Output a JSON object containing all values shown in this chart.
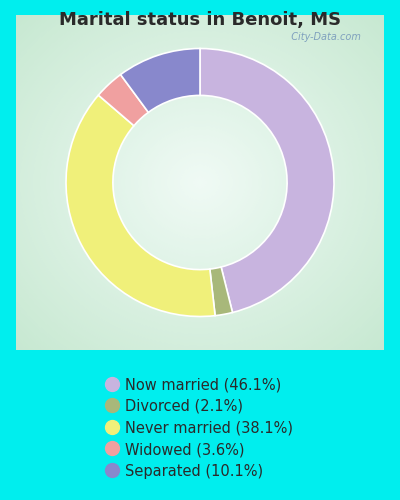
{
  "title": "Marital status in Benoit, MS",
  "title_fontsize": 13,
  "title_color": "#2a2a2a",
  "background_outer": "#00EEEE",
  "chart_bg_color": "#e8f5ee",
  "slices": [
    {
      "label": "Now married (46.1%)",
      "value": 46.1,
      "color": "#c8b4df"
    },
    {
      "label": "Divorced (2.1%)",
      "value": 2.1,
      "color": "#a8b87a"
    },
    {
      "label": "Never married (38.1%)",
      "value": 38.1,
      "color": "#f0f07a"
    },
    {
      "label": "Widowed (3.6%)",
      "value": 3.6,
      "color": "#f0a0a0"
    },
    {
      "label": "Separated (10.1%)",
      "value": 10.1,
      "color": "#8888cc"
    }
  ],
  "legend_fontsize": 10.5,
  "legend_text_color": "#2a2a2a",
  "donut_width": 0.35,
  "watermark": "  City-Data.com"
}
